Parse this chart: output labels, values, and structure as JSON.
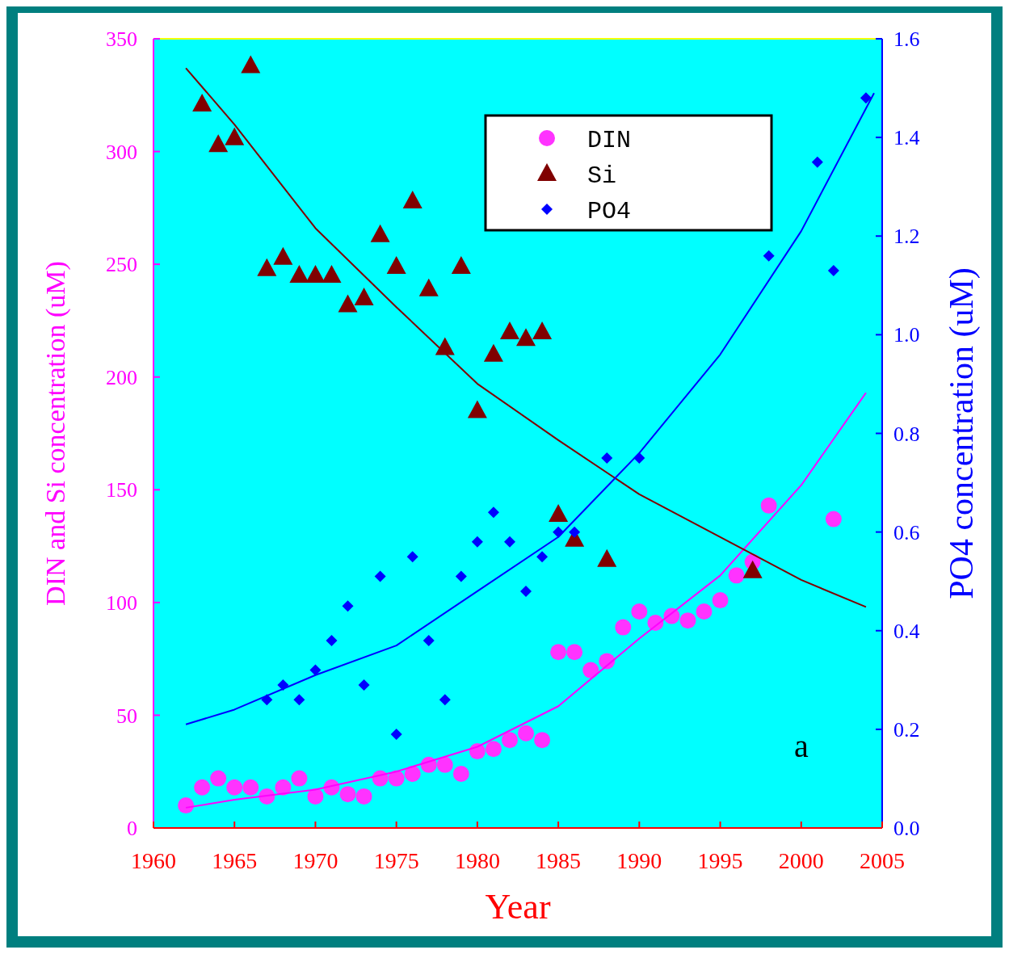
{
  "chart_data": {
    "type": "scatter",
    "xlabel": "Year",
    "ylabel": "DIN and Si concentration (uM)",
    "y2label": "PO4 concentration (uM)",
    "xlim": [
      1960,
      2005
    ],
    "xticks": [
      1960,
      1965,
      1970,
      1975,
      1980,
      1985,
      1990,
      1995,
      2000,
      2005
    ],
    "ylim": [
      0,
      350
    ],
    "yticks": [
      0,
      50,
      100,
      150,
      200,
      250,
      300,
      350
    ],
    "y2lim": [
      0,
      1.6
    ],
    "y2ticks": [
      {
        "value": 0,
        "label": "0.0"
      },
      0.2,
      0.4,
      0.6,
      0.8,
      {
        "value": 1,
        "label": "1.0"
      },
      1.2,
      1.4,
      1.6
    ],
    "grid": false,
    "legend": "top right",
    "annotations": [
      "a"
    ],
    "series": [
      {
        "name": "DIN",
        "marker": "circle",
        "color": "#ff33ff",
        "x": [
          1962,
          1963,
          1964,
          1965,
          1966,
          1967,
          1968,
          1969,
          1970,
          1971,
          1972,
          1973,
          1974,
          1975,
          1976,
          1977,
          1978,
          1979,
          1980,
          1981,
          1982,
          1983,
          1984,
          1985,
          1986,
          1987,
          1988,
          1989,
          1990,
          1991,
          1992,
          1993,
          1994,
          1995,
          1996,
          1997,
          1998,
          2002
        ],
        "values": [
          10,
          18,
          22,
          18,
          18,
          14,
          18,
          22,
          14,
          18,
          15,
          14,
          22,
          22,
          24,
          28,
          28,
          24,
          34,
          35,
          39,
          42,
          39,
          78,
          78,
          70,
          74,
          89,
          96,
          91,
          94,
          92,
          96,
          101,
          112,
          118,
          143,
          137
        ]
      },
      {
        "name": "Si",
        "marker": "triangle",
        "color": "#800000",
        "x": [
          1963,
          1964,
          1965,
          1966,
          1967,
          1968,
          1969,
          1970,
          1971,
          1972,
          1973,
          1974,
          1975,
          1976,
          1977,
          1978,
          1979,
          1980,
          1981,
          1982,
          1983,
          1984,
          1985,
          1986,
          1988,
          1997
        ],
        "values": [
          321,
          303,
          306,
          338,
          248,
          253,
          245,
          245,
          245,
          232,
          235,
          263,
          249,
          278,
          239,
          213,
          249,
          185,
          210,
          220,
          217,
          220,
          139,
          128,
          119,
          114
        ]
      },
      {
        "name": "PO4",
        "marker": "diamond",
        "axis": "y2",
        "color": "#0000ff",
        "x": [
          1967,
          1968,
          1969,
          1970,
          1971,
          1972,
          1973,
          1974,
          1975,
          1976,
          1977,
          1978,
          1979,
          1980,
          1981,
          1982,
          1983,
          1984,
          1985,
          1986,
          1988,
          1990,
          1998,
          2001,
          2002,
          2004
        ],
        "values": [
          0.26,
          0.29,
          0.26,
          0.32,
          0.38,
          0.45,
          0.29,
          0.51,
          0.19,
          0.55,
          0.38,
          0.26,
          0.51,
          0.58,
          0.64,
          0.58,
          0.48,
          0.55,
          0.6,
          0.6,
          0.75,
          0.75,
          1.16,
          1.35,
          1.13,
          1.48
        ]
      },
      {
        "type": "line",
        "color": "#ff00ff",
        "x": [
          1962,
          1965,
          1970,
          1975,
          1980,
          1985,
          1990,
          1995,
          2000,
          2004
        ],
        "values": [
          9,
          12.5,
          17,
          25,
          36,
          54,
          84,
          112,
          152,
          193
        ]
      },
      {
        "type": "line",
        "color": "#800000",
        "x": [
          1962,
          1965,
          1970,
          1975,
          1980,
          1985,
          1990,
          1995,
          2000,
          2004
        ],
        "values": [
          337,
          312,
          266,
          231,
          197,
          172,
          148,
          129,
          110,
          98
        ]
      },
      {
        "type": "line",
        "axis": "y2",
        "color": "#0000ff",
        "x": [
          1962,
          1965,
          1970,
          1975,
          1980,
          1985,
          1990,
          1995,
          2000,
          2004.5
        ],
        "values": [
          0.21,
          0.24,
          0.31,
          0.37,
          0.48,
          0.59,
          0.76,
          0.96,
          1.21,
          1.49
        ]
      }
    ]
  }
}
